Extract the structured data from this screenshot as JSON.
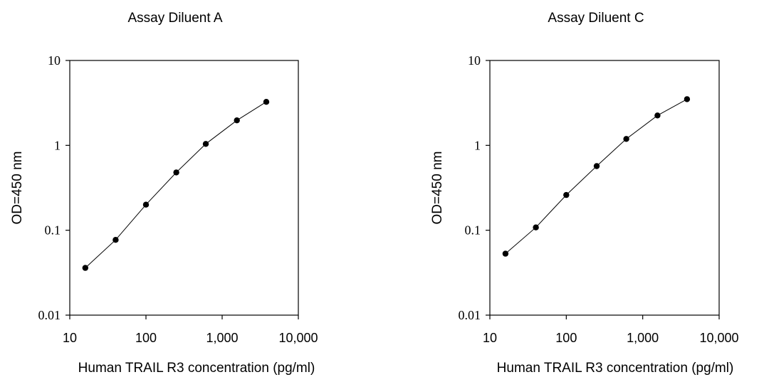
{
  "chart_data": [
    {
      "type": "line",
      "title": "Assay Diluent A",
      "xlabel": "Human TRAIL R3 concentration (pg/ml)",
      "ylabel": "OD=450 nm",
      "xscale": "log",
      "yscale": "log",
      "xlim": [
        10,
        10000
      ],
      "ylim": [
        0.01,
        10
      ],
      "xticks": [
        "10",
        "100",
        "1,000",
        "10,000"
      ],
      "yticks": [
        "10",
        "1",
        "0.1",
        "0.01"
      ],
      "grid": false,
      "markers": true,
      "series": [
        {
          "x": [
            16,
            40,
            100,
            250,
            610,
            1560,
            3800
          ],
          "y": [
            0.036,
            0.077,
            0.2,
            0.48,
            1.04,
            1.97,
            3.25
          ]
        }
      ]
    },
    {
      "type": "line",
      "title": "Assay Diluent C",
      "xlabel": "Human TRAIL R3 concentration (pg/ml)",
      "ylabel": "OD=450 nm",
      "xscale": "log",
      "yscale": "log",
      "xlim": [
        10,
        10000
      ],
      "ylim": [
        0.01,
        10
      ],
      "xticks": [
        "10",
        "100",
        "1,000",
        "10,000"
      ],
      "yticks": [
        "10",
        "1",
        "0.1",
        "0.01"
      ],
      "grid": false,
      "markers": true,
      "series": [
        {
          "x": [
            16,
            40,
            100,
            250,
            610,
            1560,
            3800
          ],
          "y": [
            0.053,
            0.108,
            0.26,
            0.57,
            1.19,
            2.25,
            3.5
          ]
        }
      ]
    }
  ]
}
